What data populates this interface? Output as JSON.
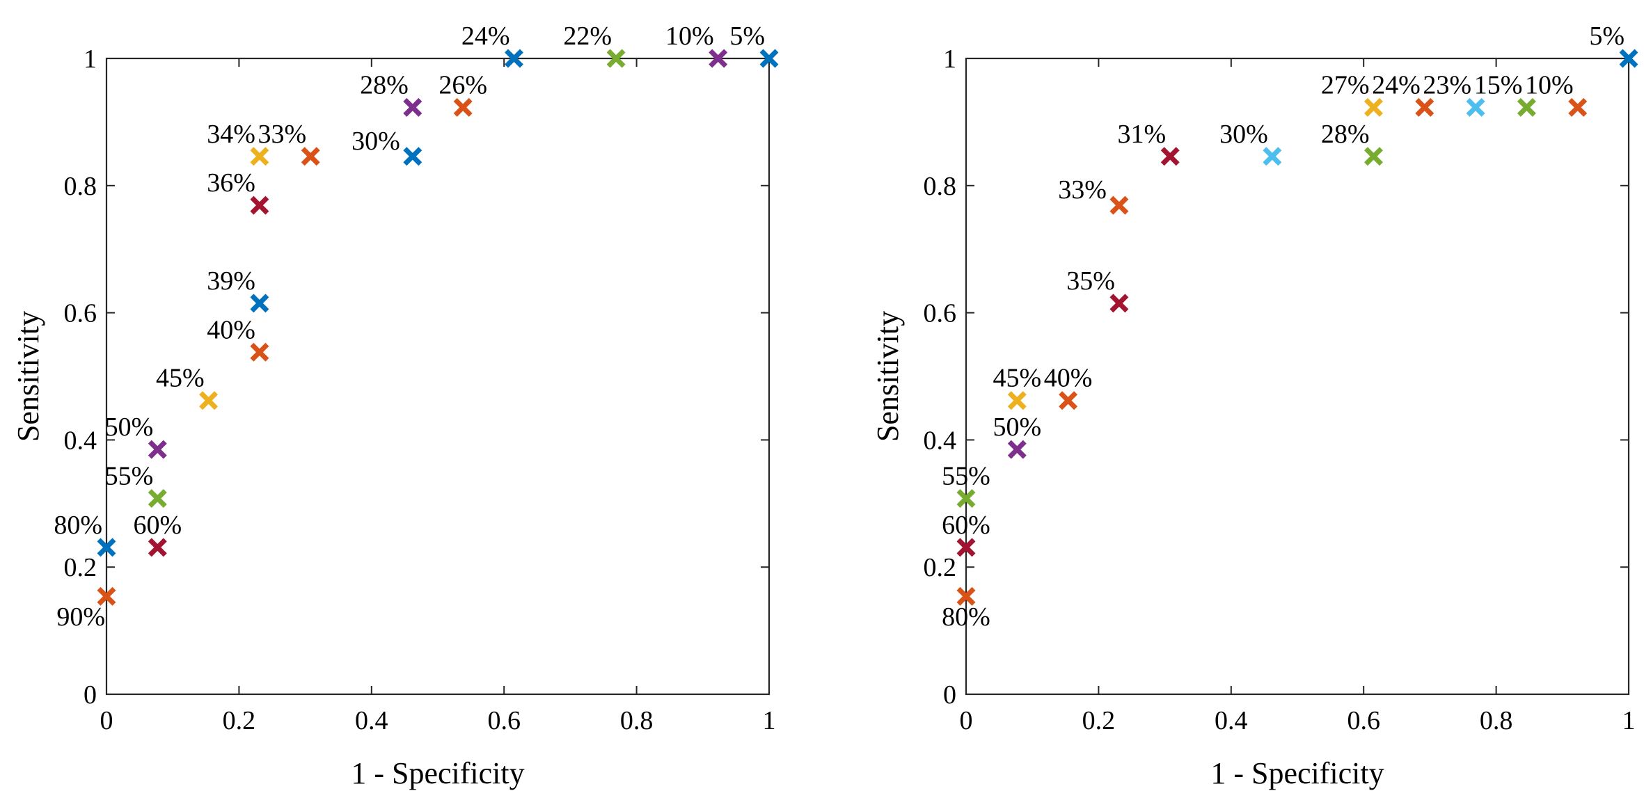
{
  "chart_data": [
    {
      "type": "scatter",
      "title": "",
      "xlabel": "1 - Specificity",
      "ylabel": "Sensitivity",
      "xlim": [
        0,
        1
      ],
      "ylim": [
        0,
        1
      ],
      "xticks": [
        "0",
        "0.2",
        "0.4",
        "0.6",
        "0.8",
        "1"
      ],
      "yticks": [
        "0",
        "0.2",
        "0.4",
        "0.6",
        "0.8",
        "1"
      ],
      "grid": false,
      "points": [
        {
          "x": 0.0,
          "y": 0.154,
          "label": "90%",
          "color": "#D95319",
          "label_pos": "below-left"
        },
        {
          "x": 0.0,
          "y": 0.231,
          "label": "80%",
          "color": "#0072BD",
          "label_pos": "above-left"
        },
        {
          "x": 0.077,
          "y": 0.231,
          "label": "60%",
          "color": "#A2142F",
          "label_pos": "above"
        },
        {
          "x": 0.077,
          "y": 0.308,
          "label": "55%",
          "color": "#77AC30",
          "label_pos": "above-left"
        },
        {
          "x": 0.077,
          "y": 0.385,
          "label": "50%",
          "color": "#7E2F8E",
          "label_pos": "above-left"
        },
        {
          "x": 0.154,
          "y": 0.462,
          "label": "45%",
          "color": "#EDB120",
          "label_pos": "above-left"
        },
        {
          "x": 0.231,
          "y": 0.538,
          "label": "40%",
          "color": "#D95319",
          "label_pos": "above-left"
        },
        {
          "x": 0.231,
          "y": 0.615,
          "label": "39%",
          "color": "#0072BD",
          "label_pos": "above-left"
        },
        {
          "x": 0.231,
          "y": 0.769,
          "label": "36%",
          "color": "#A2142F",
          "label_pos": "above-left"
        },
        {
          "x": 0.231,
          "y": 0.846,
          "label": "34%",
          "color": "#EDB120",
          "label_pos": "above-left"
        },
        {
          "x": 0.308,
          "y": 0.846,
          "label": "33%",
          "color": "#D95319",
          "label_pos": "above-left"
        },
        {
          "x": 0.462,
          "y": 0.846,
          "label": "30%",
          "color": "#0072BD",
          "label_pos": "left"
        },
        {
          "x": 0.462,
          "y": 0.923,
          "label": "28%",
          "color": "#7E2F8E",
          "label_pos": "above-left"
        },
        {
          "x": 0.538,
          "y": 0.923,
          "label": "26%",
          "color": "#D95319",
          "label_pos": "above"
        },
        {
          "x": 0.615,
          "y": 1.0,
          "label": "24%",
          "color": "#0072BD",
          "label_pos": "above-left"
        },
        {
          "x": 0.769,
          "y": 1.0,
          "label": "22%",
          "color": "#77AC30",
          "label_pos": "above-left"
        },
        {
          "x": 0.923,
          "y": 1.0,
          "label": "10%",
          "color": "#7E2F8E",
          "label_pos": "above-left"
        },
        {
          "x": 1.0,
          "y": 1.0,
          "label": "5%",
          "color": "#0072BD",
          "label_pos": "above-left"
        }
      ]
    },
    {
      "type": "scatter",
      "title": "",
      "xlabel": "1 - Specificity",
      "ylabel": "Sensitivity",
      "xlim": [
        0,
        1
      ],
      "ylim": [
        0,
        1
      ],
      "xticks": [
        "0",
        "0.2",
        "0.4",
        "0.6",
        "0.8",
        "1"
      ],
      "yticks": [
        "0",
        "0.2",
        "0.4",
        "0.6",
        "0.8",
        "1"
      ],
      "grid": false,
      "points": [
        {
          "x": 0.0,
          "y": 0.154,
          "label": "80%",
          "color": "#D95319",
          "label_pos": "below"
        },
        {
          "x": 0.0,
          "y": 0.231,
          "label": "60%",
          "color": "#A2142F",
          "label_pos": "above"
        },
        {
          "x": 0.0,
          "y": 0.308,
          "label": "55%",
          "color": "#77AC30",
          "label_pos": "above"
        },
        {
          "x": 0.077,
          "y": 0.385,
          "label": "50%",
          "color": "#7E2F8E",
          "label_pos": "above"
        },
        {
          "x": 0.077,
          "y": 0.462,
          "label": "45%",
          "color": "#EDB120",
          "label_pos": "above"
        },
        {
          "x": 0.154,
          "y": 0.462,
          "label": "40%",
          "color": "#D95319",
          "label_pos": "above"
        },
        {
          "x": 0.231,
          "y": 0.615,
          "label": "35%",
          "color": "#A2142F",
          "label_pos": "above-left"
        },
        {
          "x": 0.231,
          "y": 0.769,
          "label": "33%",
          "color": "#D95319",
          "label_pos": "left"
        },
        {
          "x": 0.308,
          "y": 0.846,
          "label": "31%",
          "color": "#A2142F",
          "label_pos": "above-left"
        },
        {
          "x": 0.462,
          "y": 0.846,
          "label": "30%",
          "color": "#4DBEEE",
          "label_pos": "above-left"
        },
        {
          "x": 0.615,
          "y": 0.846,
          "label": "28%",
          "color": "#77AC30",
          "label_pos": "above-left"
        },
        {
          "x": 0.615,
          "y": 0.923,
          "label": "27%",
          "color": "#EDB120",
          "label_pos": "above-left"
        },
        {
          "x": 0.692,
          "y": 0.923,
          "label": "24%",
          "color": "#D95319",
          "label_pos": "above-left"
        },
        {
          "x": 0.769,
          "y": 0.923,
          "label": "23%",
          "color": "#4DBEEE",
          "label_pos": "above-left"
        },
        {
          "x": 0.846,
          "y": 0.923,
          "label": "15%",
          "color": "#77AC30",
          "label_pos": "above-left"
        },
        {
          "x": 0.923,
          "y": 0.923,
          "label": "10%",
          "color": "#D95319",
          "label_pos": "above-left"
        },
        {
          "x": 1.0,
          "y": 1.0,
          "label": "5%",
          "color": "#0072BD",
          "label_pos": "above-left"
        }
      ]
    }
  ]
}
